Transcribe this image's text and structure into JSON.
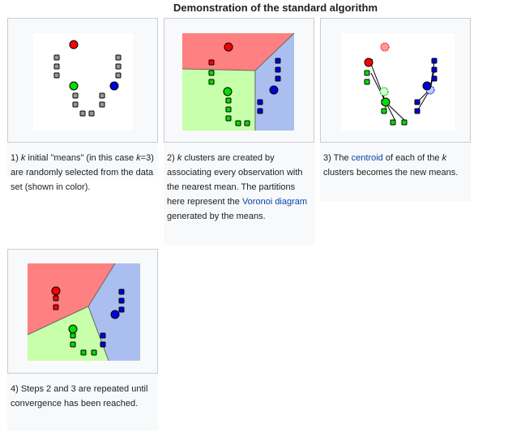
{
  "gallery": {
    "title": "Demonstration of the standard algorithm",
    "items": [
      {
        "caption_prefix": "1) ",
        "caption_k": "k",
        "caption_mid": " initial \"means\" (in this case ",
        "caption_k2": "k",
        "caption_end": "=3) are randomly selected from the data set (shown in color)."
      },
      {
        "caption_prefix": "2) ",
        "caption_k": "k",
        "caption_mid": " clusters are created by associating every observation with the nearest mean. The partitions here represent the ",
        "caption_link": "Voronoi diagram",
        "caption_end": " generated by the means."
      },
      {
        "caption_prefix": "3) The ",
        "caption_link": "centroid",
        "caption_mid": " of each of the ",
        "caption_k": "k",
        "caption_end": " clusters becomes the new means."
      },
      {
        "caption_text": "4) Steps 2 and 3 are repeated until convergence has been reached."
      }
    ]
  },
  "colors": {
    "red": "#ff0000",
    "green": "#00dd00",
    "blue": "#0000dd",
    "gray": "#999999",
    "region_red": "#ff8080",
    "region_green": "#c8ffaa",
    "region_blue": "#aabff0"
  }
}
